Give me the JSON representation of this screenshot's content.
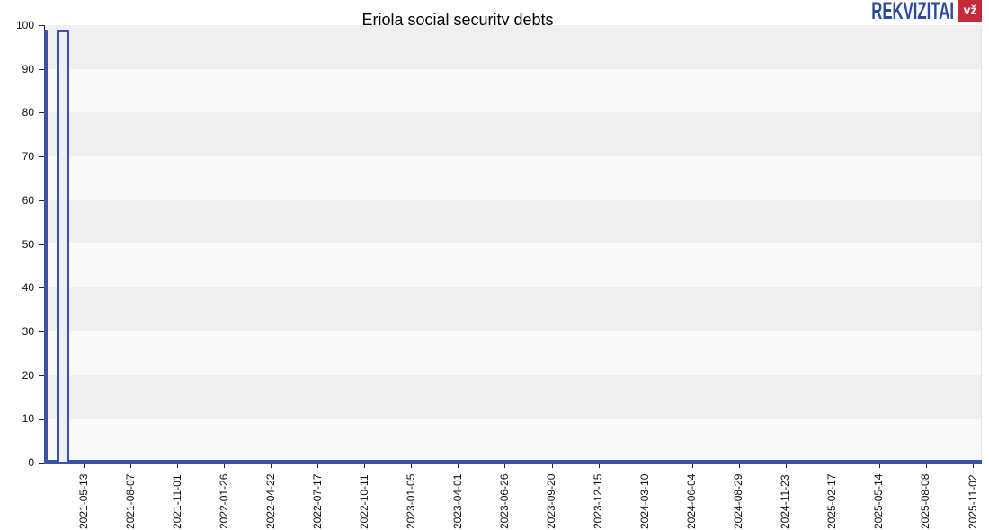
{
  "page": {
    "background": "#FFFFFF"
  },
  "header": {
    "logo": {
      "text": "REKVIZITAI",
      "badge": "vž",
      "text_color": "#2C4A9B",
      "badge_color": "#C52A3C",
      "badge_text_color": "#FFFFFF"
    }
  },
  "chart_data": {
    "type": "bar",
    "title": "Eriola social security debts",
    "xlabel": "",
    "ylabel": "",
    "ylim": [
      0,
      100
    ],
    "legend": "none",
    "grid": "alternating horizontal decade bands, no vertical gridlines",
    "y_ticks": [
      0,
      10,
      20,
      30,
      40,
      50,
      60,
      70,
      80,
      90,
      100
    ],
    "x_tick_labels": [
      "2021-05-13",
      "2021-08-07",
      "2021-11-01",
      "2022-01-26",
      "2022-04-22",
      "2022-07-17",
      "2022-10-11",
      "2023-01-05",
      "2023-04-01",
      "2023-06-26",
      "2023-09-20",
      "2023-12-15",
      "2024-03-10",
      "2024-06-04",
      "2024-08-29",
      "2024-11-23",
      "2025-02-17",
      "2025-05-14",
      "2025-08-08",
      "2025-11-02"
    ],
    "series": [
      {
        "name": "social-security-debt",
        "color": "#3A52A3",
        "baseline_value": 0,
        "zero_line": true,
        "bars": [
          {
            "x_frac": 0.0021,
            "width_frac": 0.0043,
            "value": 99,
            "style": "solid",
            "fill": "#3A52A3"
          },
          {
            "x_frac": 0.0203,
            "width_frac": 0.0129,
            "value": 99,
            "style": "outlined",
            "fill": "#EDF0F7"
          }
        ],
        "note": "debt equals 0 across the rest of the visible timeline"
      }
    ],
    "colors": {
      "line": "#3A52A3",
      "band_dark": "#EFEFEF",
      "band_light": "#F9F9F9",
      "axis": "#222222",
      "plot_border": "#E4E4E4",
      "tick_label": "#111111"
    }
  }
}
